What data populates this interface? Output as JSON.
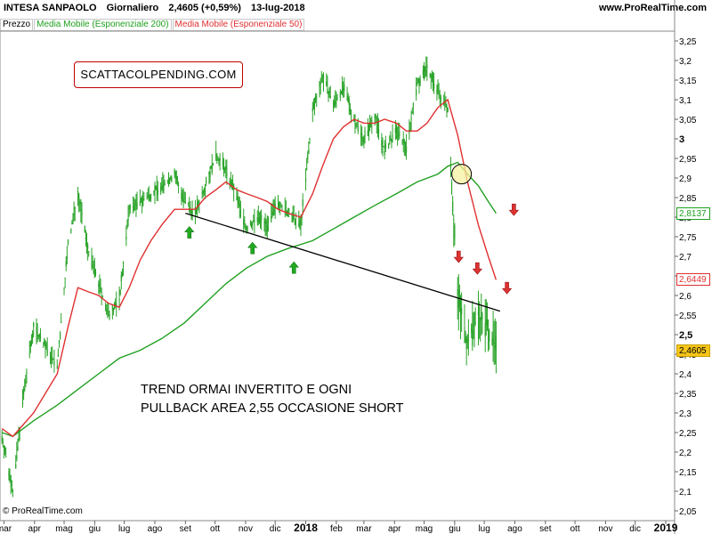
{
  "header": {
    "symbol": "INTESA SANPAOLO",
    "period": "Giornaliero",
    "price": "2,4605 (+0,59%)",
    "date": "13-lug-2018",
    "site": "www.ProRealTime.com"
  },
  "indicators": {
    "price_label": "Prezzo",
    "ema200_label": "Media Mobile (Esponenziale 200)",
    "ema50_label": "Media Mobile (Esponenziale 50)"
  },
  "watermark": "SCATTACOLPENDING.COM",
  "annotation": {
    "line1": "TREND ORMAI INVERTITO E OGNI",
    "line2": "PULLBACK AREA 2,55 OCCASIONE SHORT"
  },
  "copyright": "© ProRealTime.com",
  "price_boxes": {
    "ema200": "2,8137",
    "ema50": "2,6449",
    "last": "2,4605"
  },
  "colors": {
    "candles": "#29a329",
    "ema200": "#1fa01f",
    "ema50": "#e03030",
    "trendline": "#000000",
    "up_arrow": "#22aa22",
    "down_arrow": "#dd3333",
    "last_box": "#f5c518"
  },
  "chart_data": {
    "type": "line",
    "title": "",
    "ylim": [
      2.025,
      3.275
    ],
    "y_ticks": [
      "3,25",
      "3,2",
      "3,15",
      "3,1",
      "3,05",
      "3",
      "2,95",
      "2,9",
      "2,85",
      "2,8",
      "2,75",
      "2,7",
      "2,65",
      "2,6",
      "2,55",
      "2,5",
      "2,45",
      "2,4",
      "2,35",
      "2,3",
      "2,25",
      "2,2",
      "2,15",
      "2,1",
      "2,05"
    ],
    "y_tick_values": [
      3.25,
      3.2,
      3.15,
      3.1,
      3.05,
      3.0,
      2.95,
      2.9,
      2.85,
      2.8,
      2.75,
      2.7,
      2.65,
      2.6,
      2.55,
      2.5,
      2.45,
      2.4,
      2.35,
      2.3,
      2.25,
      2.2,
      2.15,
      2.1,
      2.05
    ],
    "x_ticks": [
      "mar",
      "apr",
      "mag",
      "giu",
      "lug",
      "ago",
      "set",
      "ott",
      "nov",
      "dic",
      "2018",
      "feb",
      "mar",
      "apr",
      "mag",
      "giu",
      "lug",
      "ago",
      "set",
      "ott",
      "nov",
      "dic",
      "2019"
    ],
    "x_tick_dates": [
      "2017-03-01",
      "2017-04-01",
      "2017-05-01",
      "2017-06-01",
      "2017-07-01",
      "2017-08-01",
      "2017-09-01",
      "2017-10-01",
      "2017-11-01",
      "2017-12-01",
      "2018-01-01",
      "2018-02-01",
      "2018-03-01",
      "2018-04-01",
      "2018-05-01",
      "2018-06-01",
      "2018-07-01",
      "2018-08-01",
      "2018-09-01",
      "2018-10-01",
      "2018-11-01",
      "2018-12-01",
      "2019-01-01"
    ],
    "xlim": [
      "2017-02-25",
      "2019-01-10"
    ],
    "series": [
      {
        "name": "Prezzo",
        "x": [
          "2017-02-27",
          "2017-03-10",
          "2017-03-20",
          "2017-03-31",
          "2017-04-12",
          "2017-04-24",
          "2017-05-05",
          "2017-05-15",
          "2017-05-25",
          "2017-06-05",
          "2017-06-15",
          "2017-06-26",
          "2017-07-06",
          "2017-07-17",
          "2017-07-28",
          "2017-08-08",
          "2017-08-21",
          "2017-08-31",
          "2017-09-11",
          "2017-09-21",
          "2017-10-02",
          "2017-10-12",
          "2017-10-23",
          "2017-11-02",
          "2017-11-13",
          "2017-11-23",
          "2017-12-04",
          "2017-12-14",
          "2017-12-27",
          "2018-01-08",
          "2018-01-18",
          "2018-01-29",
          "2018-02-08",
          "2018-02-19",
          "2018-03-01",
          "2018-03-12",
          "2018-03-22",
          "2018-04-03",
          "2018-04-13",
          "2018-04-24",
          "2018-05-04",
          "2018-05-15",
          "2018-05-25",
          "2018-06-04",
          "2018-06-14",
          "2018-06-25",
          "2018-07-05",
          "2018-07-13"
        ],
        "values": [
          2.24,
          2.1,
          2.33,
          2.52,
          2.47,
          2.42,
          2.73,
          2.86,
          2.72,
          2.63,
          2.55,
          2.59,
          2.82,
          2.84,
          2.86,
          2.88,
          2.91,
          2.84,
          2.81,
          2.88,
          2.96,
          2.92,
          2.85,
          2.77,
          2.8,
          2.78,
          2.84,
          2.81,
          2.78,
          3.07,
          3.16,
          3.09,
          3.13,
          3.05,
          3.0,
          3.06,
          2.97,
          3.02,
          2.98,
          3.14,
          3.18,
          3.12,
          3.08,
          2.6,
          2.48,
          2.55,
          2.52,
          2.46
        ]
      },
      {
        "name": "Media Mobile (Esponenziale 200)",
        "x": [
          "2017-02-27",
          "2017-03-10",
          "2017-03-31",
          "2017-04-24",
          "2017-05-15",
          "2017-06-05",
          "2017-06-26",
          "2017-07-17",
          "2017-08-08",
          "2017-08-31",
          "2017-09-21",
          "2017-10-12",
          "2017-11-02",
          "2017-11-23",
          "2017-12-14",
          "2018-01-08",
          "2018-01-29",
          "2018-02-19",
          "2018-03-12",
          "2018-04-03",
          "2018-04-24",
          "2018-05-15",
          "2018-05-25",
          "2018-06-04",
          "2018-06-14",
          "2018-06-25",
          "2018-07-05",
          "2018-07-13"
        ],
        "values": [
          2.25,
          2.24,
          2.28,
          2.32,
          2.36,
          2.4,
          2.44,
          2.46,
          2.49,
          2.53,
          2.58,
          2.63,
          2.67,
          2.7,
          2.72,
          2.74,
          2.77,
          2.8,
          2.83,
          2.86,
          2.89,
          2.91,
          2.93,
          2.94,
          2.91,
          2.88,
          2.84,
          2.81
        ]
      },
      {
        "name": "Media Mobile (Esponenziale 50)",
        "x": [
          "2017-02-27",
          "2017-03-10",
          "2017-03-31",
          "2017-04-24",
          "2017-05-05",
          "2017-05-15",
          "2017-05-25",
          "2017-06-05",
          "2017-06-15",
          "2017-06-26",
          "2017-07-06",
          "2017-07-17",
          "2017-07-28",
          "2017-08-08",
          "2017-08-21",
          "2017-08-31",
          "2017-09-11",
          "2017-09-21",
          "2017-10-02",
          "2017-10-12",
          "2017-10-23",
          "2017-11-02",
          "2017-11-13",
          "2017-11-23",
          "2017-12-04",
          "2017-12-14",
          "2017-12-27",
          "2018-01-08",
          "2018-01-18",
          "2018-01-29",
          "2018-02-08",
          "2018-02-19",
          "2018-03-01",
          "2018-03-12",
          "2018-03-22",
          "2018-04-03",
          "2018-04-13",
          "2018-04-24",
          "2018-05-04",
          "2018-05-15",
          "2018-05-25",
          "2018-06-04",
          "2018-06-14",
          "2018-06-25",
          "2018-07-05",
          "2018-07-13"
        ],
        "values": [
          2.26,
          2.24,
          2.3,
          2.4,
          2.52,
          2.62,
          2.61,
          2.6,
          2.58,
          2.57,
          2.62,
          2.69,
          2.74,
          2.78,
          2.82,
          2.82,
          2.82,
          2.85,
          2.87,
          2.89,
          2.87,
          2.86,
          2.85,
          2.84,
          2.82,
          2.81,
          2.8,
          2.86,
          2.93,
          3.0,
          3.03,
          3.05,
          3.04,
          3.04,
          3.05,
          3.04,
          3.02,
          3.02,
          3.04,
          3.08,
          3.1,
          3.01,
          2.89,
          2.78,
          2.7,
          2.64
        ]
      }
    ],
    "trendline": {
      "x": [
        "2017-09-01",
        "2018-07-17"
      ],
      "y": [
        2.81,
        2.56
      ]
    },
    "up_arrows": [
      {
        "x": "2017-09-05",
        "y": 2.76
      },
      {
        "x": "2017-11-08",
        "y": 2.72
      },
      {
        "x": "2017-12-20",
        "y": 2.67
      }
    ],
    "down_arrows": [
      {
        "x": "2018-06-05",
        "y": 2.7
      },
      {
        "x": "2018-06-24",
        "y": 2.67
      },
      {
        "x": "2018-07-24",
        "y": 2.62
      },
      {
        "x": "2018-07-31",
        "y": 2.82
      }
    ],
    "highlight_circle": {
      "x": "2018-06-08",
      "y": 2.91
    }
  }
}
